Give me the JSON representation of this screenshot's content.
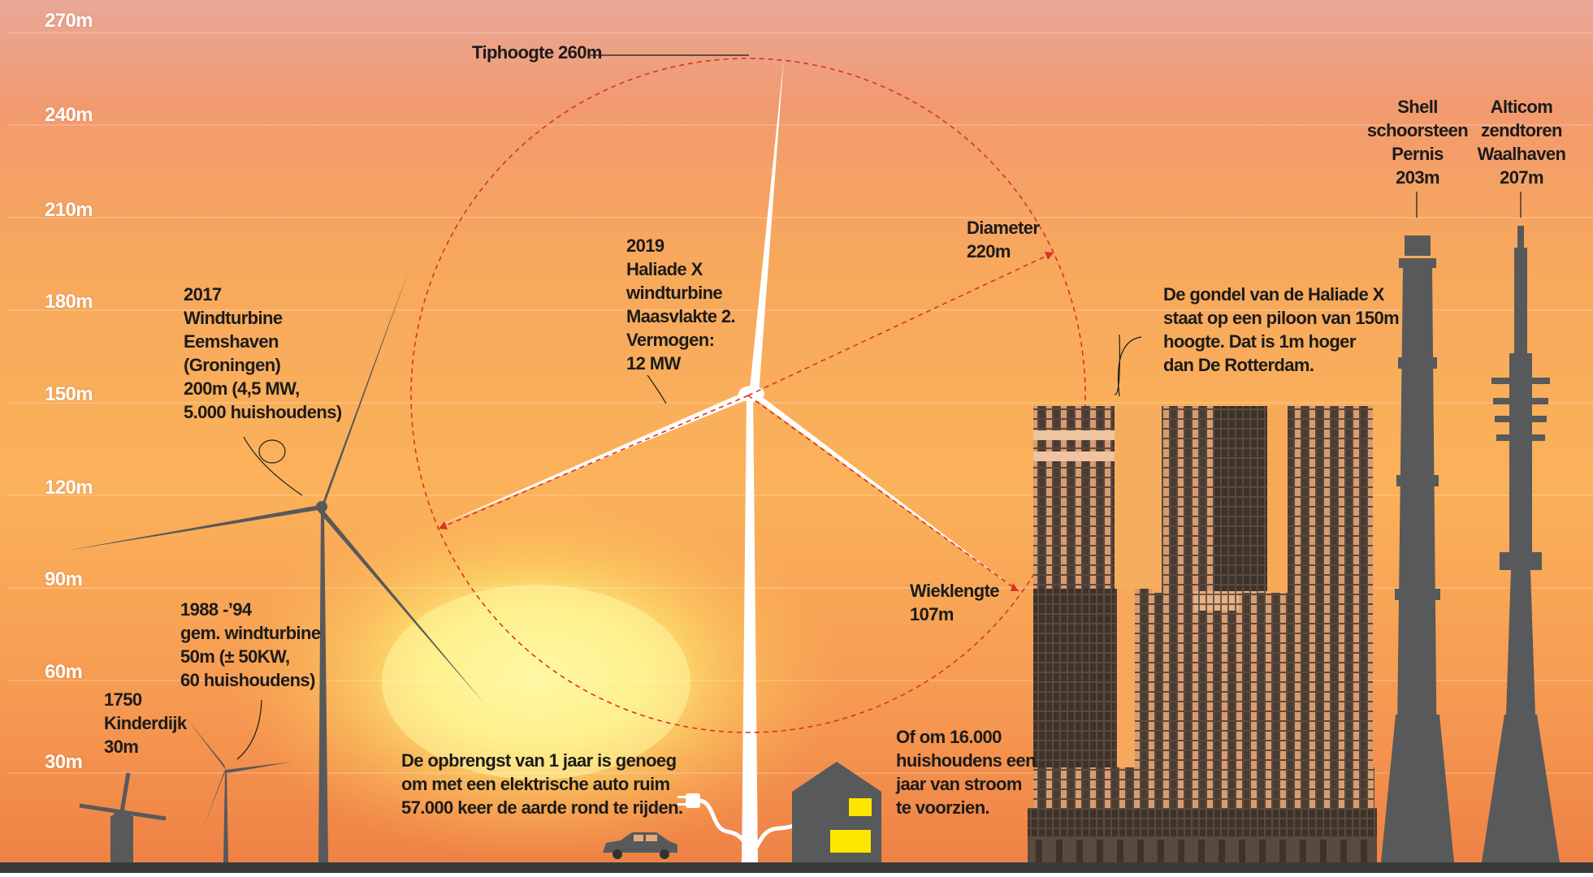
{
  "axis": {
    "labels": [
      "270m",
      "240m",
      "210m",
      "180m",
      "150m",
      "120m",
      "90m",
      "60m",
      "30m"
    ]
  },
  "annotations": {
    "tiphoogte": "Tiphoogte 260m",
    "haliade": "2019\nHaliade X\nwindturbine\nMaasvlakte 2.\nVermogen:\n12 MW",
    "diameter": "Diameter\n220m",
    "wieklengte": "Wieklengte\n107m",
    "eemshaven": "2017\nWindturbine\nEemshaven\n(Groningen)\n200m (4,5 MW,\n5.000 huishoudens)",
    "gem_windturbine": "1988 -’94\ngem. windturbine\n50m (± 50KW,\n60 huishoudens)",
    "kinderdijk": "1750\nKinderdijk\n30m",
    "gondel": "De gondel van de Haliade X\nstaat op een piloon van 150m\nhoogte. Dat is 1m hoger\ndan De Rotterdam.",
    "shell": "Shell\nschoorsteen\nPernis\n203m",
    "alticom": "Alticom\nzendtoren\nWaalhaven\n207m",
    "opbrengst": "De opbrengst van 1 jaar is genoeg\nom met een elektrische auto ruim\n57.000 keer de aarde rond te rijden.",
    "huishoudens": "Of om 16.000\nhuishoudens een\njaar van stroom\nte voorzien."
  },
  "colors": {
    "turbine_dark": "#58595b",
    "turbine_white": "#ffffff",
    "circle_dash": "#d8322a",
    "ground": "#3a3a3a",
    "window_light": "#ffe600",
    "sky_top": "#e8a08a",
    "sky_mid": "#fbb45c",
    "sun": "#fff5a0"
  },
  "icons": [
    "windmill-icon",
    "car-icon",
    "plug-icon",
    "house-icon"
  ]
}
